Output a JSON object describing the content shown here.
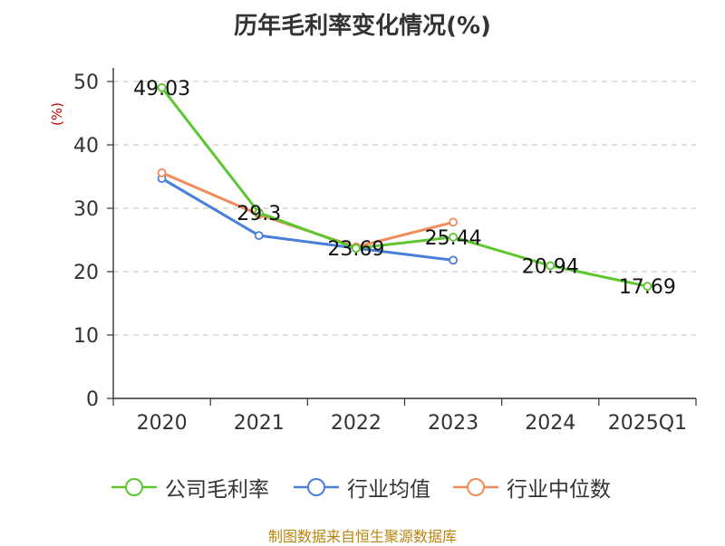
{
  "chart_data": {
    "type": "line",
    "title": "历年毛利率变化情况(%)",
    "ylabel": "(%)",
    "xlabel": "",
    "ylim": [
      0,
      50
    ],
    "yticks": [
      0,
      10,
      20,
      30,
      40,
      50
    ],
    "grid": "horizontal-dashed",
    "legend_position": "bottom",
    "categories": [
      "2020",
      "2021",
      "2022",
      "2023",
      "2024",
      "2025Q1"
    ],
    "series": [
      {
        "name": "公司毛利率",
        "color": "#5cc72e",
        "values": [
          49.03,
          29.3,
          23.69,
          25.44,
          20.94,
          17.69
        ],
        "labels": [
          "49.03",
          "29.3",
          "23.69",
          "25.44",
          "20.94",
          "17.69"
        ]
      },
      {
        "name": "行业均值",
        "color": "#4a7edb",
        "values": [
          34.7,
          25.7,
          23.7,
          21.8,
          null,
          null
        ]
      },
      {
        "name": "行业中位数",
        "color": "#f28c5a",
        "values": [
          35.6,
          29.0,
          23.9,
          27.8,
          null,
          null
        ]
      }
    ]
  },
  "source_note": "制图数据来自恒生聚源数据库",
  "ylabel_color": "#cc0000"
}
